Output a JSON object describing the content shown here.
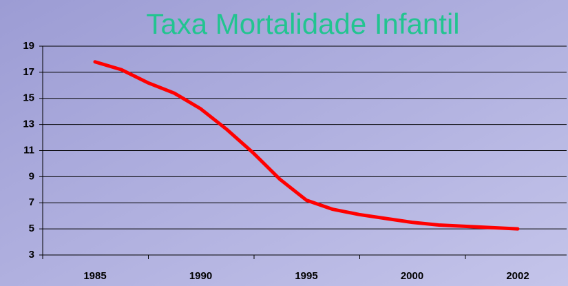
{
  "chart_data": {
    "type": "line",
    "title": "Taxa Mortalidade Infantil",
    "categories": [
      "1985",
      null,
      null,
      null,
      "1990",
      null,
      null,
      null,
      "1995",
      null,
      null,
      null,
      "2000",
      null,
      null,
      null,
      "2002"
    ],
    "series": [
      {
        "color": "#ff0000",
        "values": [
          17.8,
          17.2,
          16.2,
          15.4,
          14.2,
          12.6,
          10.8,
          8.8,
          7.2,
          6.5,
          6.1,
          5.8,
          5.5,
          5.3,
          5.2,
          5.1,
          5.0
        ]
      }
    ],
    "ylim": [
      3,
      19
    ],
    "yticks": [
      3,
      5,
      7,
      9,
      11,
      13,
      15,
      17,
      19
    ],
    "grid": true
  }
}
